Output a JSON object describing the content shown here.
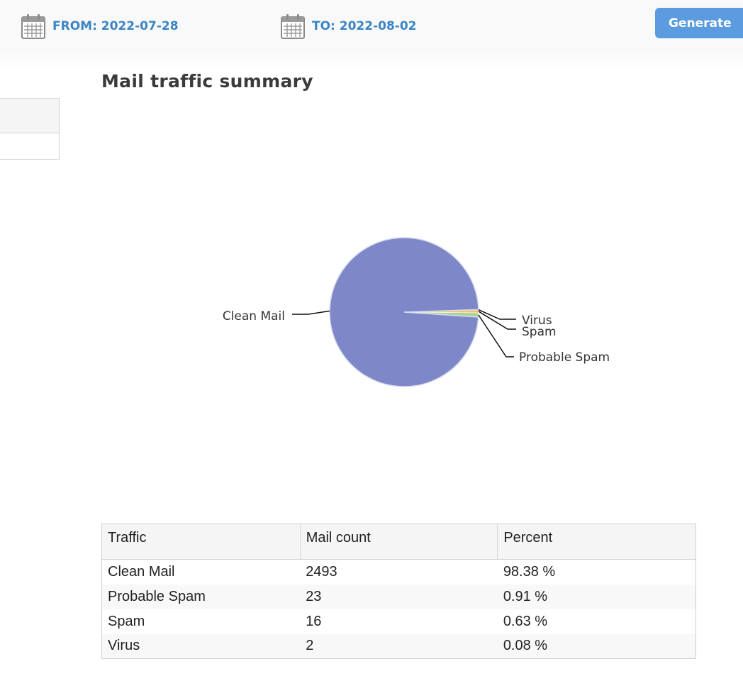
{
  "header": {
    "from_label": "FROM: 2022-07-28",
    "to_label": "TO: 2022-08-02",
    "generate_label": "Generate"
  },
  "page_title": "Mail traffic summary",
  "colors": {
    "accent_blue": "#3a85c6",
    "button_blue": "#5b9be0",
    "clean_mail": "#7e88c8",
    "probable_spam": "#a8d48e",
    "spam": "#f1c27d",
    "virus": "#f2a3a3"
  },
  "chart_data": {
    "type": "pie",
    "slices": [
      {
        "label": "Clean Mail",
        "value": 2493,
        "color": "#7e88c8"
      },
      {
        "label": "Probable Spam",
        "value": 23,
        "color": "#a8d48e"
      },
      {
        "label": "Spam",
        "value": 16,
        "color": "#f1c27d"
      },
      {
        "label": "Virus",
        "value": 2,
        "color": "#f2a3a3"
      }
    ]
  },
  "table": {
    "headers": [
      "Traffic",
      "Mail count",
      "Percent"
    ],
    "rows": [
      [
        "Clean Mail",
        "2493",
        "98.38 %"
      ],
      [
        "Probable Spam",
        "23",
        "0.91 %"
      ],
      [
        "Spam",
        "16",
        "0.63 %"
      ],
      [
        "Virus",
        "2",
        "0.08 %"
      ]
    ]
  }
}
